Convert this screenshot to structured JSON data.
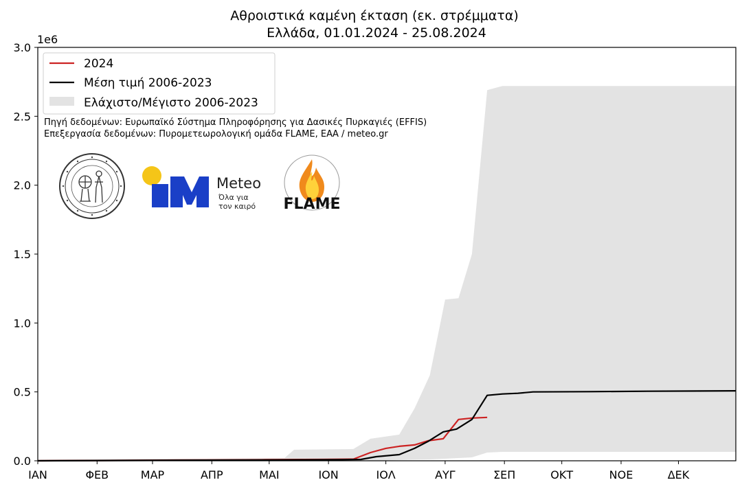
{
  "chart_data": {
    "type": "line",
    "title": "Αθροιστικά καμένη έκταση (εκ. στρέμματα)",
    "subtitle": "Ελλάδα, 01.01.2024 - 25.08.2024",
    "y_multiplier_label": "1e6",
    "ylim": [
      0,
      3.0
    ],
    "yticks": [
      "0.0",
      "0.5",
      "1.0",
      "1.5",
      "2.0",
      "2.5",
      "3.0"
    ],
    "ytick_values": [
      0,
      0.5,
      1.0,
      1.5,
      2.0,
      2.5,
      3.0
    ],
    "xlim": [
      1,
      366
    ],
    "xticks": [
      {
        "label": "ΙΑΝ",
        "day": 1
      },
      {
        "label": "ΦΕΒ",
        "day": 32
      },
      {
        "label": "ΜΑΡ",
        "day": 61
      },
      {
        "label": "ΑΠΡ",
        "day": 92
      },
      {
        "label": "ΜΑΙ",
        "day": 122
      },
      {
        "label": "ΙΟΝ",
        "day": 153
      },
      {
        "label": "ΙΟΛ",
        "day": 183
      },
      {
        "label": "ΑΥΓ",
        "day": 214
      },
      {
        "label": "ΣΕΠ",
        "day": 245
      },
      {
        "label": "ΟΚΤ",
        "day": 275
      },
      {
        "label": "ΝΟΕ",
        "day": 306
      },
      {
        "label": "ΔΕΚ",
        "day": 336
      }
    ],
    "legend_position": "top-left",
    "series": [
      {
        "name": "2024",
        "color": "#cc2222",
        "kind": "line",
        "x": [
          1,
          30,
          60,
          90,
          120,
          150,
          166,
          175,
          183,
          190,
          198,
          205,
          213,
          221,
          228,
          236
        ],
        "y": [
          0,
          0.002,
          0.004,
          0.006,
          0.008,
          0.01,
          0.012,
          0.06,
          0.09,
          0.105,
          0.115,
          0.145,
          0.16,
          0.3,
          0.31,
          0.315
        ]
      },
      {
        "name": "Μέση τιμή 2006-2023",
        "color": "#000000",
        "kind": "line",
        "x": [
          1,
          60,
          120,
          160,
          170,
          178,
          190,
          198,
          205,
          213,
          220,
          228,
          236,
          244,
          252,
          260,
          290,
          320,
          366
        ],
        "y": [
          0,
          0.003,
          0.006,
          0.008,
          0.01,
          0.03,
          0.045,
          0.09,
          0.14,
          0.21,
          0.23,
          0.3,
          0.475,
          0.485,
          0.49,
          0.5,
          0.502,
          0.505,
          0.508
        ]
      },
      {
        "name": "Ελάχιστο/Μέγιστο 2006-2023",
        "color": "#e3e3e3",
        "kind": "band",
        "x": [
          1,
          130,
          135,
          166,
          175,
          190,
          198,
          206,
          214,
          221,
          228,
          236,
          244,
          366
        ],
        "min": [
          0,
          0,
          0,
          0,
          0,
          0.005,
          0.008,
          0.01,
          0.015,
          0.02,
          0.025,
          0.06,
          0.065,
          0.065
        ],
        "max": [
          0.01,
          0.02,
          0.08,
          0.085,
          0.16,
          0.19,
          0.38,
          0.62,
          1.17,
          1.18,
          1.5,
          2.69,
          2.72,
          2.72
        ]
      }
    ]
  },
  "notes": {
    "source": "Πηγή δεδομένων: Ευρωπαϊκό Σύστημα Πληροφόρησης για Δασικές Πυρκαγιές (EFFIS)",
    "processing": "Επεξεργασία δεδομένων: Πυρομετεωρολογική ομάδα FLAME, ΕΑΑ / meteo.gr"
  },
  "logos": {
    "noa": {
      "icon": "national-observatory-seal"
    },
    "meteo": {
      "icon": "meteo-logo",
      "brand": "Meteo",
      "tagline_1": "Όλα για",
      "tagline_2": "τον καιρό",
      "color": "#1a3fc7",
      "sun_color": "#f5c518"
    },
    "flame": {
      "icon": "flame-logo",
      "text": "FLAME"
    }
  }
}
